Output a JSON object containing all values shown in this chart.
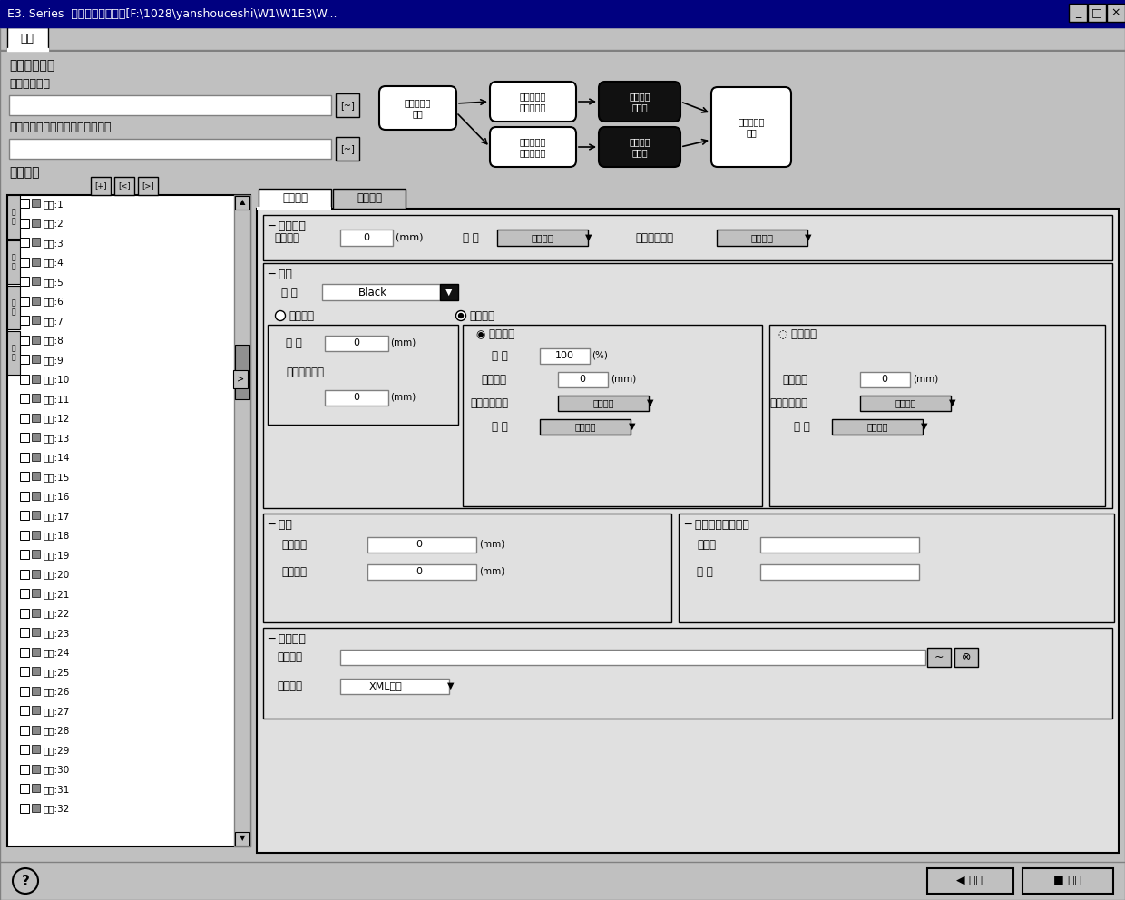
{
  "title": "E3. Series  三维数据导出工具[F:\\1028\\yanshouceshi\\W1\\W1E3\\W...",
  "bg_color": "#c0c0c0",
  "tab_label": "导出",
  "section1": "导出工作状态",
  "label_orig_file": "原始线缆文件",
  "label_3d_file": "三维标注文件（用于读取线密度）",
  "complete_tab": "完整选项",
  "simplify_tab": "简化选项",
  "wire_struct": "线缆构成",
  "wire_guide_label": "电缆导线",
  "insulation_label": "绝缘压度",
  "insulation_value": "0",
  "insulation_unit": "(mm)",
  "diameter_label": "直 径",
  "diameter_method": "默认算法",
  "min_bend_label": "最小弯曲半径",
  "min_bend_method": "默认算法",
  "cable_label": "电缆",
  "color_label": "颜 色",
  "color_value": "Black",
  "manual_label": "手动输入",
  "auto_label": "自动计算",
  "rect_method_label": "矩形算法",
  "circle_method_label": "圆形算法",
  "ratio_label": "比 例",
  "ratio_value": "100",
  "ratio_unit": "(%)",
  "sheath_label1": "护套压度",
  "sheath_value1": "0",
  "sheath_unit1": "(mm)",
  "sheath_label2": "护套压度",
  "sheath_value2": "0",
  "sheath_unit2": "(mm)",
  "min_bend2_label": "最小弯曲半径",
  "min_bend2_method": "默认算法",
  "min_bend3_label": "最小弯曲半径",
  "min_bend3_method": "默认算法",
  "diameter2_label": "直 径",
  "diameter2_method": "默认算法",
  "diameter3_label": "直 径",
  "diameter3_method": "默认算法",
  "pin_label": "针脚",
  "inner_len_label": "内部长度",
  "inner_len_value": "0",
  "inner_len_unit": "(mm)",
  "arrange_label": "排列方式",
  "arrange_value": "0",
  "arrange_unit": "(mm)",
  "exchange_label": "交互文件版本信息",
  "identifier_label": "标识符",
  "version_label": "版 本",
  "output_path_label": "输出路径",
  "output_path_label2": "输出路径",
  "output_format_label": "输出格式",
  "output_format_value": "XML格式",
  "export_btn": "导出",
  "cancel_btn": "退出",
  "wire_list": [
    "芯线:1",
    "芯线:2",
    "芯线:3",
    "芯线:4",
    "芯线:5",
    "芯线:6",
    "芯线:7",
    "芯线:8",
    "芯线:9",
    "芯线:10",
    "芯线:11",
    "芯线:12",
    "芯线:13",
    "芯线:14",
    "芯线:15",
    "芯线:16",
    "芯线:17",
    "芯线:18",
    "芯线:19",
    "芯线:20",
    "芯线:21",
    "芯线:22",
    "芯线:23",
    "芯线:24",
    "芯线:25",
    "芯线:26",
    "芯线:27",
    "芯线:28",
    "芯线:29",
    "芯线:30",
    "芯线:31",
    "芯线:32"
  ]
}
